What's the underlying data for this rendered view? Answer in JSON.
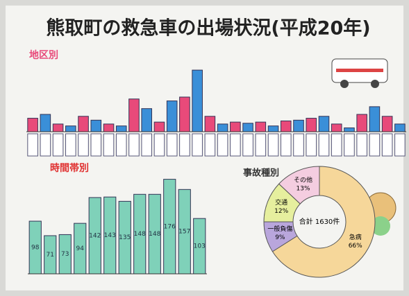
{
  "header": {
    "title": "熊取町の救急車の出場状況(平成20年)"
  },
  "chart_data": [
    {
      "type": "bar",
      "title": "地区別",
      "categories": [
        null,
        null,
        null,
        null,
        null,
        null,
        null,
        null,
        null,
        null,
        null,
        null,
        null,
        null,
        null,
        null,
        null,
        null,
        null,
        null,
        null,
        null,
        null,
        null,
        null,
        null,
        null,
        null,
        null,
        null
      ],
      "values": [
        35,
        45,
        20,
        15,
        40,
        30,
        20,
        15,
        85,
        60,
        25,
        80,
        90,
        160,
        40,
        20,
        25,
        22,
        25,
        15,
        28,
        30,
        35,
        40,
        20,
        10,
        45,
        65,
        40,
        20
      ],
      "colors": [
        "#e84a7a",
        "#3a8fd8"
      ],
      "ylim": [
        0,
        180
      ]
    },
    {
      "type": "bar",
      "title": "時間帯別",
      "categories": [
        null,
        null,
        null,
        null,
        null,
        null,
        null,
        null,
        null,
        null,
        null,
        null
      ],
      "values": [
        98,
        71,
        73,
        94,
        142,
        143,
        135,
        148,
        148,
        176,
        157,
        103
      ],
      "color": "#7fd1b9",
      "ylim": [
        0,
        200
      ]
    },
    {
      "type": "pie",
      "title": "事故種別",
      "center_label": "合計 1630件",
      "categories": [
        "急病",
        "一般負傷",
        "交通",
        "その他"
      ],
      "values": [
        66,
        9,
        12,
        13
      ],
      "value_labels": [
        "66%",
        "9%",
        "12%",
        "13%"
      ],
      "colors": [
        "#f6d79a",
        "#b9a6dc",
        "#e6ef9e",
        "#f4cde0"
      ]
    }
  ]
}
